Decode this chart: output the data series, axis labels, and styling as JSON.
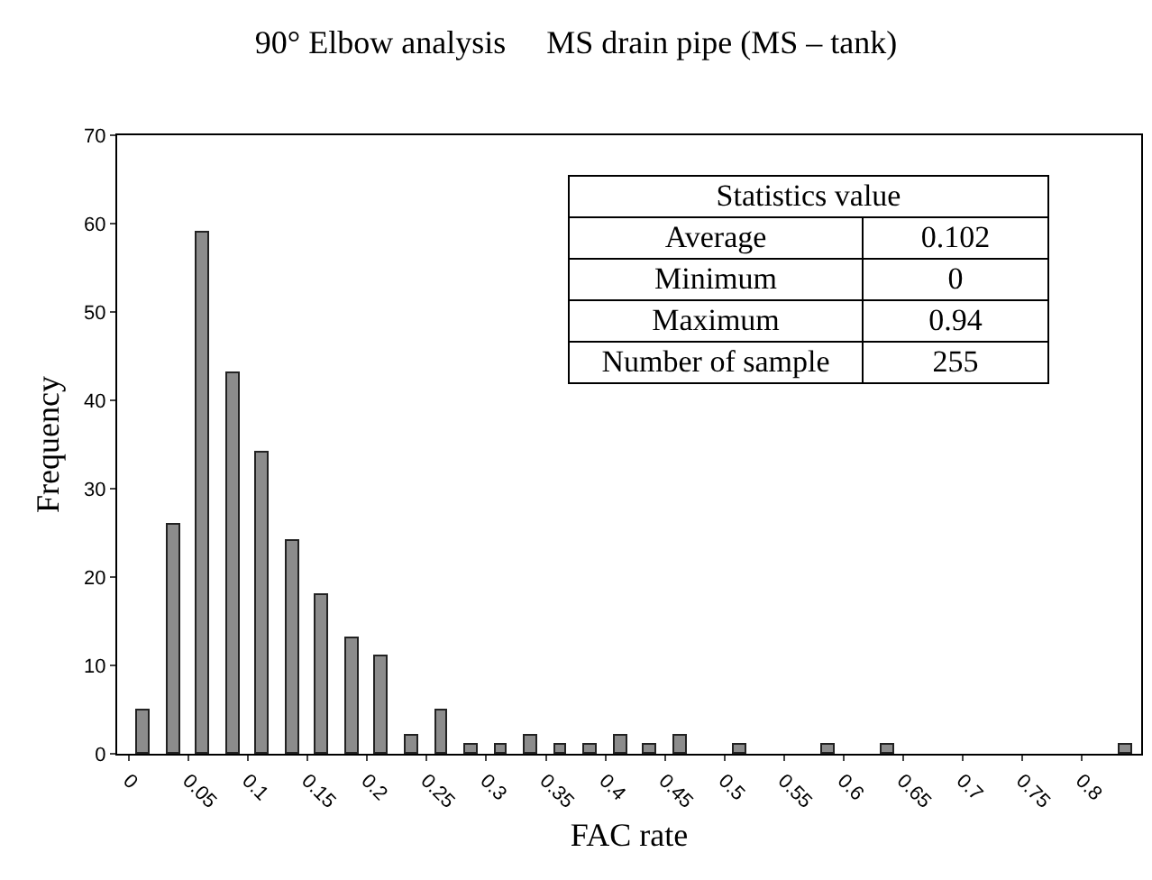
{
  "chart_data": {
    "type": "histogram",
    "title": "90° Elbow analysis     MS drain pipe (MS – tank)",
    "xlabel": "FAC rate",
    "ylabel": "Frequency",
    "bins": [
      0,
      0.025,
      0.05,
      0.075,
      0.1,
      0.125,
      0.15,
      0.175,
      0.2,
      0.225,
      0.25,
      0.275,
      0.3,
      0.325,
      0.35,
      0.375,
      0.4,
      0.425,
      0.45,
      0.475,
      0.5,
      0.525,
      0.55,
      0.575,
      0.6,
      0.625,
      0.65,
      0.675,
      0.7,
      0.725,
      0.75,
      0.775,
      0.8,
      0.825,
      0.85
    ],
    "values": [
      5,
      26,
      59,
      43,
      34,
      24,
      18,
      13,
      11,
      2,
      5,
      1,
      1,
      2,
      1,
      1,
      2,
      1,
      2,
      0,
      1,
      0,
      0,
      1,
      0,
      1,
      0,
      0,
      0,
      0,
      0,
      0,
      0,
      1
    ],
    "color": "#8c8c8c",
    "xlim": [
      -0.01,
      0.85
    ],
    "xticks": [
      0,
      0.05,
      0.1,
      0.15,
      0.2,
      0.25,
      0.3,
      0.35,
      0.4,
      0.45,
      0.5,
      0.55,
      0.6,
      0.65,
      0.7,
      0.75,
      0.8
    ],
    "ylim": [
      0,
      70
    ],
    "yticks": [
      0,
      10,
      20,
      30,
      40,
      50,
      60,
      70
    ],
    "grid": false,
    "annotations": [
      "Statistics value",
      "Average",
      "0.102",
      "Minimum",
      "0",
      "Maximum",
      "0.94",
      "Number of sample",
      "255"
    ]
  }
}
